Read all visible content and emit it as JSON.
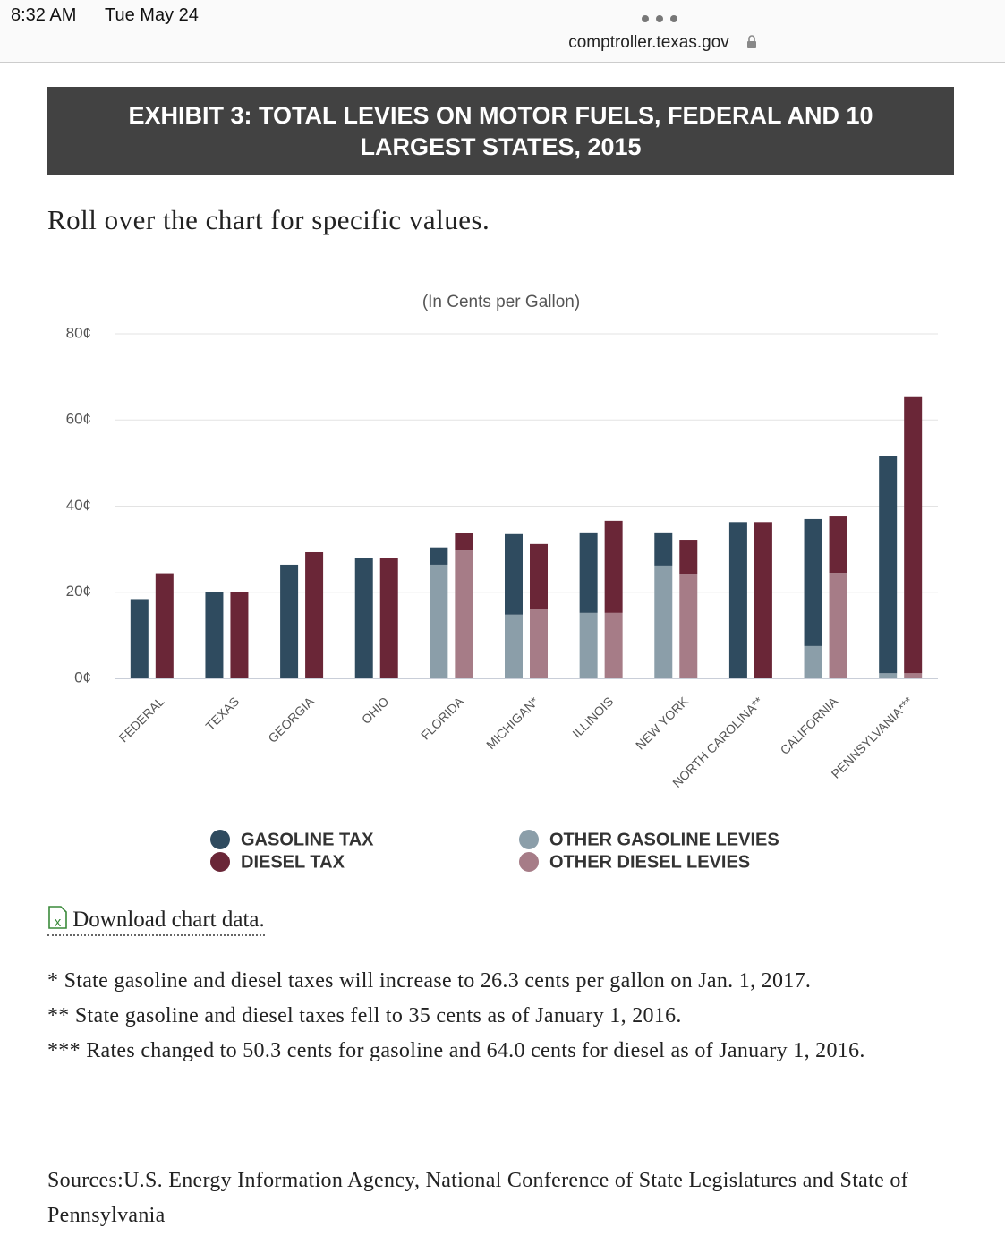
{
  "status": {
    "time": "8:32 AM",
    "date": "Tue May 24",
    "url": "comptroller.texas.gov"
  },
  "header": {
    "title": "EXHIBIT 3: TOTAL LEVIES ON MOTOR FUELS, FEDERAL AND 10 LARGEST STATES, 2015"
  },
  "intro": "Roll over the chart for specific values.",
  "chart_data": {
    "type": "bar",
    "subtitle": "(In Cents per Gallon)",
    "categories": [
      "FEDERAL",
      "TEXAS",
      "GEORGIA",
      "OHIO",
      "FLORIDA",
      "MICHIGAN*",
      "ILLINOIS",
      "NEW YORK",
      "NORTH CAROLINA**",
      "CALIFORNIA",
      "PENNSYLVANIA***"
    ],
    "series": [
      {
        "name": "GASOLINE TAX",
        "color": "#2f4b5f",
        "values": [
          18.4,
          20,
          26.4,
          28,
          4.0,
          18.7,
          18.7,
          7.7,
          36.3,
          29.5,
          50.4
        ]
      },
      {
        "name": "DIESEL TAX",
        "color": "#6a2637",
        "values": [
          24.4,
          20,
          29.3,
          28,
          4.0,
          15.0,
          21.4,
          7.9,
          36.3,
          13.1,
          64.1
        ]
      },
      {
        "name": "OTHER GASOLINE LEVIES",
        "color": "#8b9ea9",
        "values": [
          0,
          0,
          0,
          0,
          26.4,
          14.8,
          15.2,
          26.2,
          0,
          7.5,
          1.2
        ]
      },
      {
        "name": "OTHER DIESEL LEVIES",
        "color": "#a67c87",
        "values": [
          0,
          0,
          0,
          0,
          29.7,
          16.2,
          15.2,
          24.3,
          0,
          24.5,
          1.2
        ]
      }
    ],
    "ylim": [
      0,
      80
    ],
    "yticks": [
      {
        "value": 0,
        "label": "0¢"
      },
      {
        "value": 20,
        "label": "20¢"
      },
      {
        "value": 40,
        "label": "40¢"
      },
      {
        "value": 60,
        "label": "60¢"
      },
      {
        "value": 80,
        "label": "80¢"
      }
    ],
    "grid": true
  },
  "download": "Download chart data.",
  "footnotes": [
    "* State gasoline and diesel taxes will increase to 26.3 cents per gallon on Jan. 1, 2017.",
    "** State gasoline and diesel taxes fell to 35 cents as of January 1, 2016.",
    "*** Rates changed to 50.3 cents for gasoline and 64.0 cents for diesel as of January 1, 2016."
  ],
  "sources": "Sources:U.S. Energy Information Agency, National Conference of State Legislatures and State of Pennsylvania"
}
